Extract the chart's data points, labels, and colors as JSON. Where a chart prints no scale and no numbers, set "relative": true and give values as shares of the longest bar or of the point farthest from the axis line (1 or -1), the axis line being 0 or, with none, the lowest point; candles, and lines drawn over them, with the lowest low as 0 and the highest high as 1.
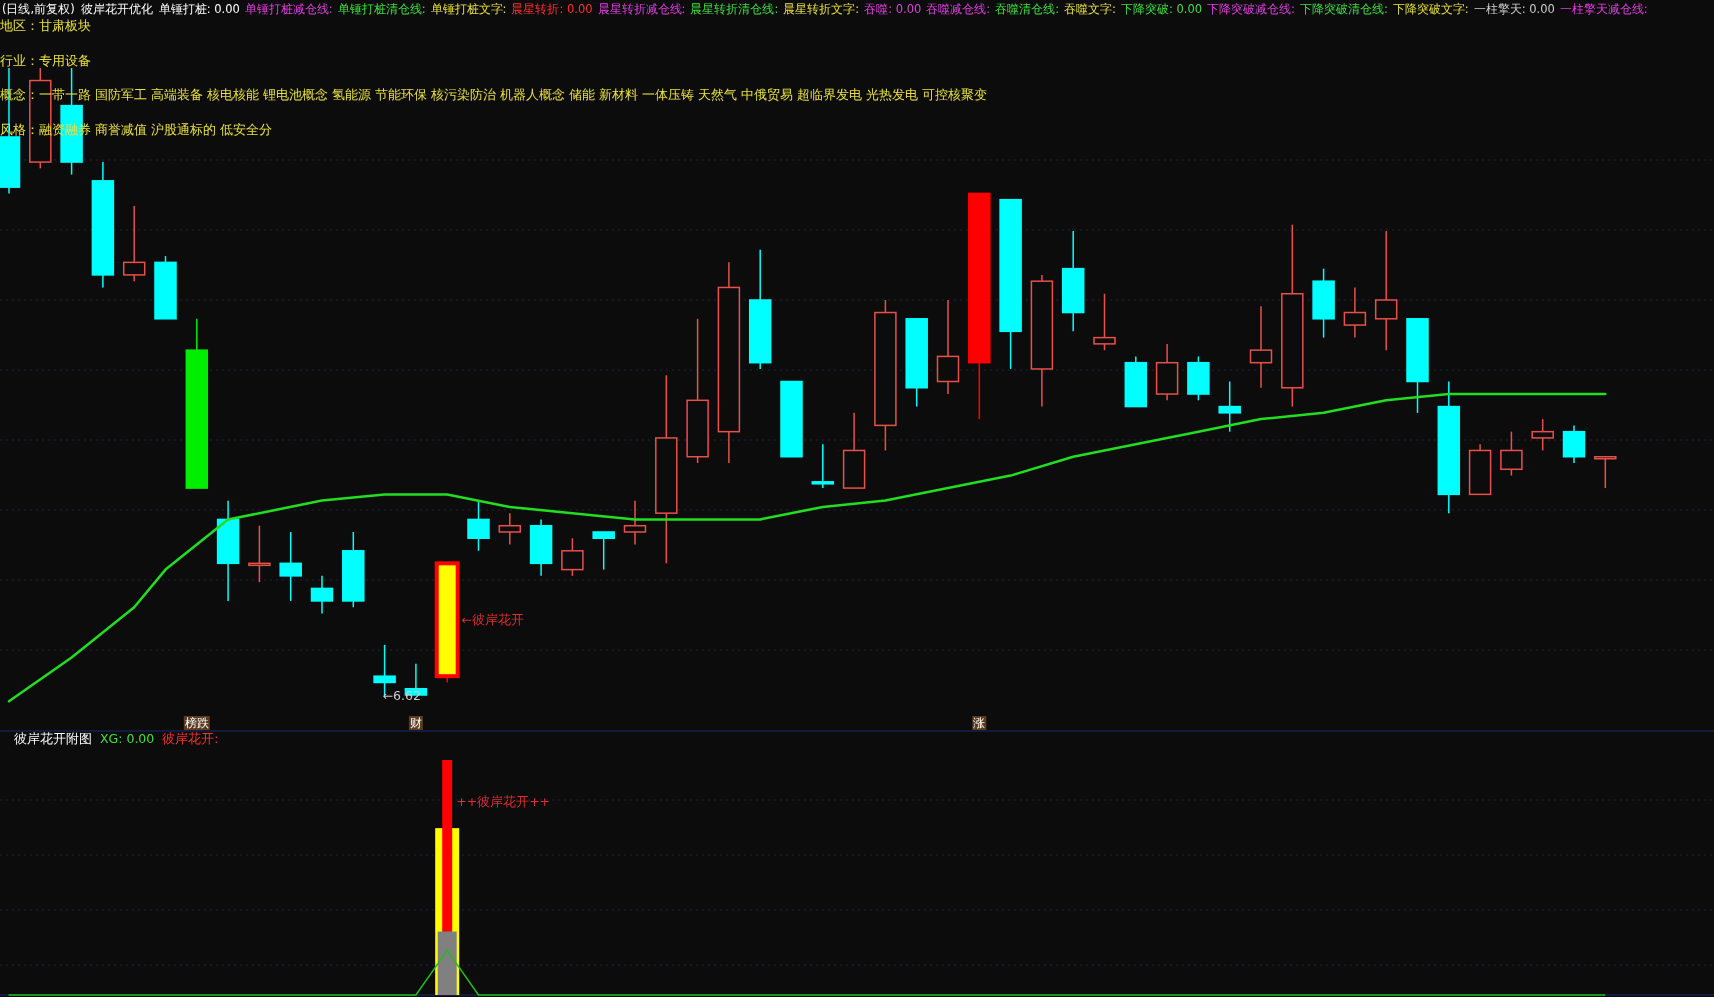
{
  "chart_data": [
    {
      "type": "candlestick",
      "title": "(日线,前复权)",
      "subtitle": "彼岸花开优化",
      "relative": true,
      "annotations": [
        "单锤打桩: 0.00",
        "单锤打桩减仓线:",
        "单锤打桩清仓线:",
        "单锤打桩文字:",
        "晨星转折: 0.00",
        "晨星转折减仓线:",
        "晨星转折清仓线:",
        "晨星转折文字:",
        "吞噬: 0.00",
        "吞噬减仓线:",
        "吞噬清仓线:",
        "吞噬文字:",
        "下降突破: 0.00",
        "下降突破减仓线:",
        "下降突破清仓线:",
        "下降突破文字:",
        "一柱擎天: 0.00",
        "一柱擎天减仓线:",
        "地区：甘肃板块",
        "行业：专用设备",
        "概念：一带一路 国防军工 高端装备 核电核能 锂电池概念 氢能源 节能环保 核污染防治 机器人概念 储能 新材料 一体压铸 天然气 中俄贸易 超临界发电 光热发电 可控核聚变",
        "风格：融资融券 商誉减值 沪股通标的 低安全分",
        "←彼岸花开",
        "←6.62"
      ],
      "categories": [
        null,
        null,
        null,
        null,
        null,
        null,
        "榜跌",
        null,
        null,
        null,
        null,
        null,
        null,
        "财",
        null,
        null,
        null,
        null,
        null,
        null,
        null,
        null,
        null,
        null,
        null,
        null,
        null,
        null,
        null,
        null,
        null,
        "涨",
        null,
        null,
        null,
        null,
        null,
        null,
        null,
        null,
        null,
        null,
        null,
        null,
        null,
        null,
        null,
        null,
        null,
        null,
        null,
        null
      ],
      "ohlc": [
        [
          0.89,
          1.0,
          0.8,
          0.81
        ],
        [
          0.85,
          1.0,
          0.84,
          0.98
        ],
        [
          0.94,
          1.0,
          0.83,
          0.85
        ],
        [
          0.82,
          0.85,
          0.65,
          0.67
        ],
        [
          0.67,
          0.78,
          0.66,
          0.69
        ],
        [
          0.69,
          0.7,
          0.6,
          0.6
        ],
        [
          0.55,
          0.6,
          0.33,
          0.33
        ],
        [
          0.28,
          0.31,
          0.15,
          0.21
        ],
        [
          0.21,
          0.27,
          0.18,
          0.21
        ],
        [
          0.21,
          0.26,
          0.15,
          0.19
        ],
        [
          0.17,
          0.19,
          0.13,
          0.15
        ],
        [
          0.23,
          0.26,
          0.14,
          0.15
        ],
        [
          0.03,
          0.08,
          0.0,
          0.02
        ],
        [
          0.01,
          0.05,
          0.0,
          0.0
        ],
        [
          0.03,
          0.21,
          0.02,
          0.21
        ],
        [
          0.28,
          0.31,
          0.23,
          0.25
        ],
        [
          0.26,
          0.29,
          0.24,
          0.27
        ],
        [
          0.27,
          0.28,
          0.19,
          0.21
        ],
        [
          0.2,
          0.25,
          0.19,
          0.23
        ],
        [
          0.26,
          0.26,
          0.2,
          0.25
        ],
        [
          0.26,
          0.31,
          0.24,
          0.27
        ],
        [
          0.29,
          0.51,
          0.21,
          0.41
        ],
        [
          0.38,
          0.6,
          0.37,
          0.47
        ],
        [
          0.42,
          0.69,
          0.37,
          0.65
        ],
        [
          0.63,
          0.71,
          0.52,
          0.53
        ],
        [
          0.5,
          0.5,
          0.38,
          0.38
        ],
        [
          0.34,
          0.4,
          0.33,
          0.34
        ],
        [
          0.33,
          0.45,
          0.33,
          0.39
        ],
        [
          0.43,
          0.63,
          0.39,
          0.61
        ],
        [
          0.6,
          0.6,
          0.46,
          0.49
        ],
        [
          0.5,
          0.63,
          0.48,
          0.54
        ],
        [
          0.53,
          0.8,
          0.44,
          0.8
        ],
        [
          0.79,
          0.79,
          0.52,
          0.58
        ],
        [
          0.52,
          0.67,
          0.46,
          0.66
        ],
        [
          0.68,
          0.74,
          0.58,
          0.61
        ],
        [
          0.56,
          0.64,
          0.55,
          0.57
        ],
        [
          0.53,
          0.54,
          0.46,
          0.46
        ],
        [
          0.48,
          0.56,
          0.47,
          0.53
        ],
        [
          0.53,
          0.54,
          0.47,
          0.48
        ],
        [
          0.46,
          0.5,
          0.42,
          0.45
        ],
        [
          0.53,
          0.62,
          0.49,
          0.55
        ],
        [
          0.49,
          0.75,
          0.46,
          0.64
        ],
        [
          0.66,
          0.68,
          0.57,
          0.6
        ],
        [
          0.59,
          0.65,
          0.57,
          0.61
        ],
        [
          0.6,
          0.74,
          0.55,
          0.63
        ],
        [
          0.6,
          0.6,
          0.45,
          0.5
        ],
        [
          0.46,
          0.5,
          0.29,
          0.32
        ],
        [
          0.32,
          0.4,
          0.32,
          0.39
        ],
        [
          0.36,
          0.42,
          0.35,
          0.39
        ],
        [
          0.41,
          0.44,
          0.39,
          0.42
        ],
        [
          0.42,
          0.43,
          0.37,
          0.38
        ],
        [
          0.38,
          0.38,
          0.33,
          0.38
        ]
      ],
      "colors": [
        "#00ffff",
        "#e8504a",
        "#00ffff",
        "#00ffff",
        "#e8504a",
        "#00ffff",
        "#00ee00",
        "#00ffff",
        "#e8504a",
        "#00ffff",
        "#00ffff",
        "#00ffff",
        "#00ffff",
        "#00ffff",
        "#ffff00",
        "#00ffff",
        "#e8504a",
        "#00ffff",
        "#e8504a",
        "#00ffff",
        "#e8504a",
        "#e8504a",
        "#e8504a",
        "#e8504a",
        "#00ffff",
        "#00ffff",
        "#00ffff",
        "#e8504a",
        "#e8504a",
        "#00ffff",
        "#e8504a",
        "#ff0000",
        "#00ffff",
        "#e8504a",
        "#00ffff",
        "#e8504a",
        "#00ffff",
        "#e8504a",
        "#00ffff",
        "#00ffff",
        "#e8504a",
        "#e8504a",
        "#00ffff",
        "#e8504a",
        "#e8504a",
        "#00ffff",
        "#00ffff",
        "#e8504a",
        "#e8504a",
        "#e8504a",
        "#00ffff",
        "#e8504a"
      ],
      "series": [
        {
          "type": "line",
          "color": "#22dd22",
          "values": [
            -0.01,
            null,
            0.06,
            null,
            0.14,
            0.2,
            null,
            0.28,
            0.29,
            null,
            0.31,
            null,
            0.32,
            null,
            0.32,
            null,
            0.3,
            null,
            0.29,
            null,
            0.28,
            null,
            0.28,
            null,
            0.28,
            null,
            0.3,
            null,
            0.31,
            null,
            0.33,
            null,
            0.35,
            null,
            0.38,
            null,
            0.4,
            null,
            0.42,
            null,
            0.44,
            null,
            0.45,
            null,
            0.47,
            null,
            0.48,
            null,
            0.48,
            null,
            0.48,
            0.48
          ]
        }
      ]
    },
    {
      "type": "bar",
      "title": "彼岸花开附图",
      "relative": true,
      "annotations": [
        "XG: 0.00",
        "彼岸花开:",
        "++彼岸花开++"
      ],
      "categories": [
        null,
        null,
        null,
        null,
        null,
        null,
        null,
        null,
        null,
        null,
        null,
        null,
        null,
        null,
        null,
        null,
        null,
        null,
        null,
        null,
        null,
        null,
        null,
        null,
        null,
        null,
        null,
        null,
        null,
        null,
        null,
        null,
        null,
        null,
        null,
        null,
        null,
        null,
        null,
        null,
        null,
        null,
        null,
        null,
        null,
        null,
        null,
        null,
        null,
        null,
        null,
        null
      ],
      "series": [
        {
          "color": "#808080",
          "values": [
            null,
            null,
            null,
            null,
            null,
            null,
            null,
            null,
            null,
            null,
            null,
            null,
            null,
            null,
            0.27,
            null,
            null,
            null,
            null,
            null,
            null,
            null,
            null,
            null,
            null,
            null,
            null,
            null,
            null,
            null,
            null,
            null,
            null,
            null,
            null,
            null,
            null,
            null,
            null,
            null,
            null,
            null,
            null,
            null,
            null,
            null,
            null,
            null,
            null,
            null,
            null,
            null
          ]
        },
        {
          "color": "#ffff00",
          "values": [
            null,
            null,
            null,
            null,
            null,
            null,
            null,
            null,
            null,
            null,
            null,
            null,
            null,
            null,
            0.71,
            null,
            null,
            null,
            null,
            null,
            null,
            null,
            null,
            null,
            null,
            null,
            null,
            null,
            null,
            null,
            null,
            null,
            null,
            null,
            null,
            null,
            null,
            null,
            null,
            null,
            null,
            null,
            null,
            null,
            null,
            null,
            null,
            null,
            null,
            null,
            null,
            null
          ]
        },
        {
          "color": "#ff0000",
          "values": [
            null,
            null,
            null,
            null,
            null,
            null,
            null,
            null,
            null,
            null,
            null,
            null,
            null,
            null,
            1.0,
            null,
            null,
            null,
            null,
            null,
            null,
            null,
            null,
            null,
            null,
            null,
            null,
            null,
            null,
            null,
            null,
            null,
            null,
            null,
            null,
            null,
            null,
            null,
            null,
            null,
            null,
            null,
            null,
            null,
            null,
            null,
            null,
            null,
            null,
            null,
            null,
            null
          ]
        },
        {
          "type": "line",
          "color": "#22bb22",
          "values": [
            0,
            0,
            0,
            0,
            0,
            0,
            0,
            0,
            0,
            0,
            0,
            0,
            0,
            0,
            0.19,
            0,
            0,
            0,
            0,
            0,
            0,
            0,
            0,
            0,
            0,
            0,
            0,
            0,
            0,
            0,
            0,
            0,
            0,
            0,
            0,
            0,
            0,
            0,
            0,
            0,
            0,
            0,
            0,
            0,
            0,
            0,
            0,
            0,
            0,
            0,
            0,
            0
          ]
        }
      ]
    }
  ]
}
